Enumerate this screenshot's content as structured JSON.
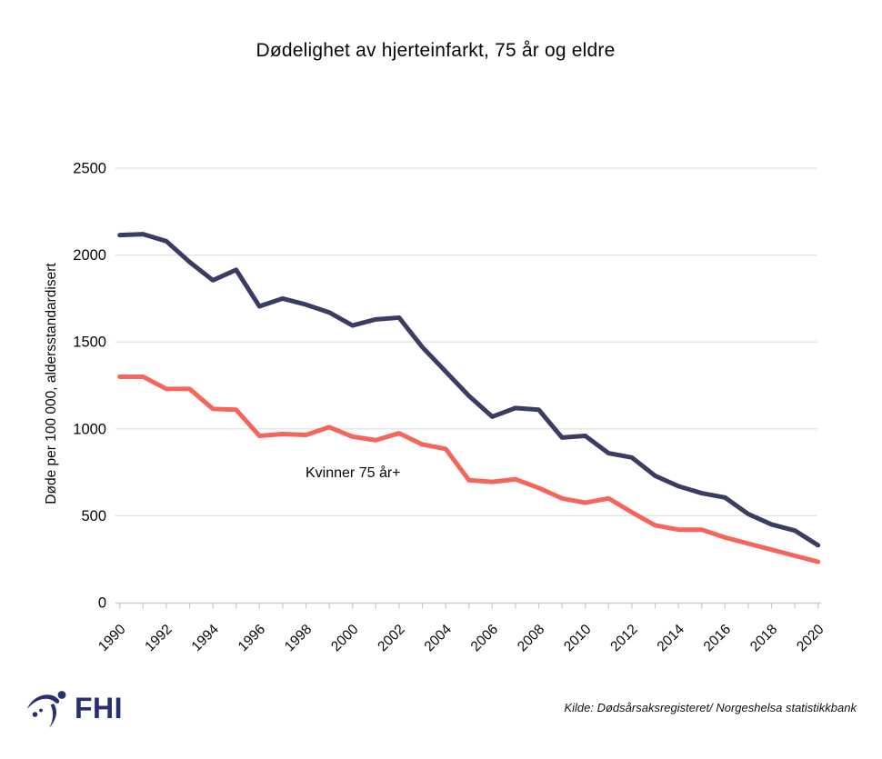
{
  "title": "Dødelighet av hjerteinfarkt, 75 år og eldre",
  "y_axis_title": "Døde per 100 000, aldersstandardisert",
  "footer": {
    "logo_text": "FHI",
    "source": "Kilde: Dødsårsaksregisteret/ Norgeshelsa statistikkbank"
  },
  "colors": {
    "line_dark_navy": "#3a3c63",
    "line_red": "#f5655c",
    "logo_navy": "#283170",
    "gridline": "#e3e3e3",
    "axis": "#c9c9c9",
    "text": "#050505"
  },
  "chart_data": {
    "type": "line",
    "title": "Dødelighet av hjerteinfarkt, 75 år og eldre",
    "xlabel": "",
    "ylabel": "Døde per 100 000, aldersstandardisert",
    "x": [
      1990,
      1991,
      1992,
      1993,
      1994,
      1995,
      1996,
      1997,
      1998,
      1999,
      2000,
      2001,
      2002,
      2003,
      2004,
      2005,
      2006,
      2007,
      2008,
      2009,
      2010,
      2011,
      2012,
      2013,
      2014,
      2015,
      2016,
      2017,
      2018,
      2019,
      2020
    ],
    "x_tick_labels": [
      "1990",
      "1992",
      "1994",
      "1996",
      "1998",
      "2000",
      "2002",
      "2004",
      "2006",
      "2008",
      "2010",
      "2012",
      "2014",
      "2016",
      "2018",
      "2020"
    ],
    "yticks": [
      0,
      500,
      1000,
      1500,
      2000,
      2500
    ],
    "ylim": [
      0,
      2500
    ],
    "grid": true,
    "legend_position": "none",
    "annotations": [
      {
        "text": "Kvinner 75 år+",
        "near_year": 2000,
        "near_value": 720
      }
    ],
    "series": [
      {
        "label": "",
        "color": "#3a3c63",
        "values": [
          2115,
          2120,
          2080,
          1960,
          1855,
          1915,
          1705,
          1750,
          1715,
          1670,
          1595,
          1630,
          1640,
          1470,
          1330,
          1190,
          1070,
          1120,
          1110,
          950,
          960,
          860,
          835,
          730,
          670,
          630,
          605,
          510,
          450,
          415,
          330
        ]
      },
      {
        "label": "Kvinner 75 år+",
        "color": "#f5655c",
        "values": [
          1300,
          1300,
          1230,
          1230,
          1115,
          1110,
          960,
          970,
          965,
          1010,
          955,
          935,
          975,
          910,
          885,
          705,
          695,
          710,
          660,
          600,
          575,
          600,
          520,
          445,
          420,
          420,
          375,
          340,
          305,
          270,
          235
        ]
      }
    ]
  }
}
